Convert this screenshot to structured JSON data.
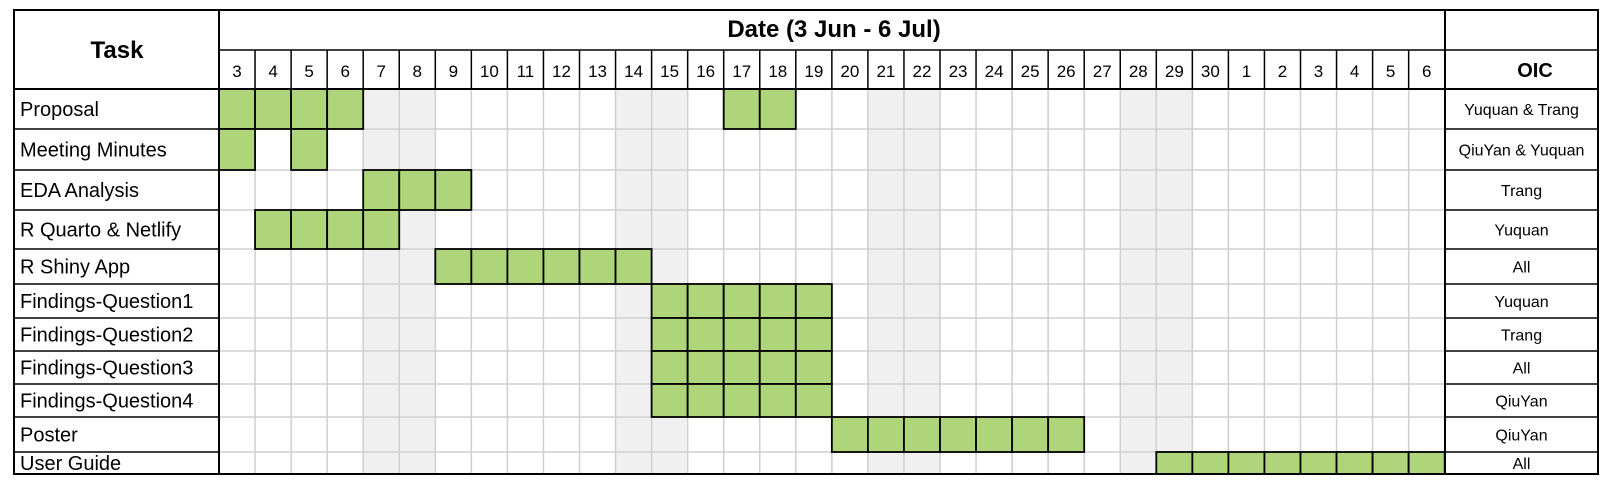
{
  "chart_data": {
    "type": "gantt",
    "headers": {
      "task": "Task",
      "date": "Date (3 Jun - 6 Jul)",
      "oic": "OIC"
    },
    "days": [
      "3",
      "4",
      "5",
      "6",
      "7",
      "8",
      "9",
      "10",
      "11",
      "12",
      "13",
      "14",
      "15",
      "16",
      "17",
      "18",
      "19",
      "20",
      "21",
      "22",
      "23",
      "24",
      "25",
      "26",
      "27",
      "28",
      "29",
      "30",
      "1",
      "2",
      "3",
      "4",
      "5",
      "6"
    ],
    "weekend_days": [
      4,
      5,
      11,
      12,
      18,
      19,
      25,
      26
    ],
    "tasks": [
      {
        "name": "Proposal",
        "oic": "Yuquan & Trang",
        "days": [
          0,
          1,
          2,
          3,
          14,
          15
        ]
      },
      {
        "name": "Meeting Minutes",
        "oic": "QiuYan & Yuquan",
        "days": [
          0,
          2
        ]
      },
      {
        "name": "EDA Analysis",
        "oic": "Trang",
        "days": [
          4,
          5,
          6
        ]
      },
      {
        "name": "R Quarto & Netlify",
        "oic": "Yuquan",
        "days": [
          1,
          2,
          3,
          4
        ]
      },
      {
        "name": "R Shiny App",
        "oic": "All",
        "days": [
          6,
          7,
          8,
          9,
          10,
          11
        ]
      },
      {
        "name": "Findings-Question1",
        "oic": "Yuquan",
        "days": [
          12,
          13,
          14,
          15,
          16
        ]
      },
      {
        "name": "Findings-Question2",
        "oic": "Trang",
        "days": [
          12,
          13,
          14,
          15,
          16
        ]
      },
      {
        "name": "Findings-Question3",
        "oic": "All",
        "days": [
          12,
          13,
          14,
          15,
          16
        ]
      },
      {
        "name": "Findings-Question4",
        "oic": "QiuYan",
        "days": [
          12,
          13,
          14,
          15,
          16
        ]
      },
      {
        "name": "Poster",
        "oic": "QiuYan",
        "days": [
          17,
          18,
          19,
          20,
          21,
          22,
          23
        ]
      },
      {
        "name": "User Guide",
        "oic": "All",
        "days": [
          26,
          27,
          28,
          29,
          30,
          31,
          32,
          33
        ]
      }
    ],
    "colors": {
      "task_fill": "#aed57a",
      "weekend_fill": "#f0f0f0",
      "grid": "#cfcfcf",
      "border": "#000000"
    }
  }
}
